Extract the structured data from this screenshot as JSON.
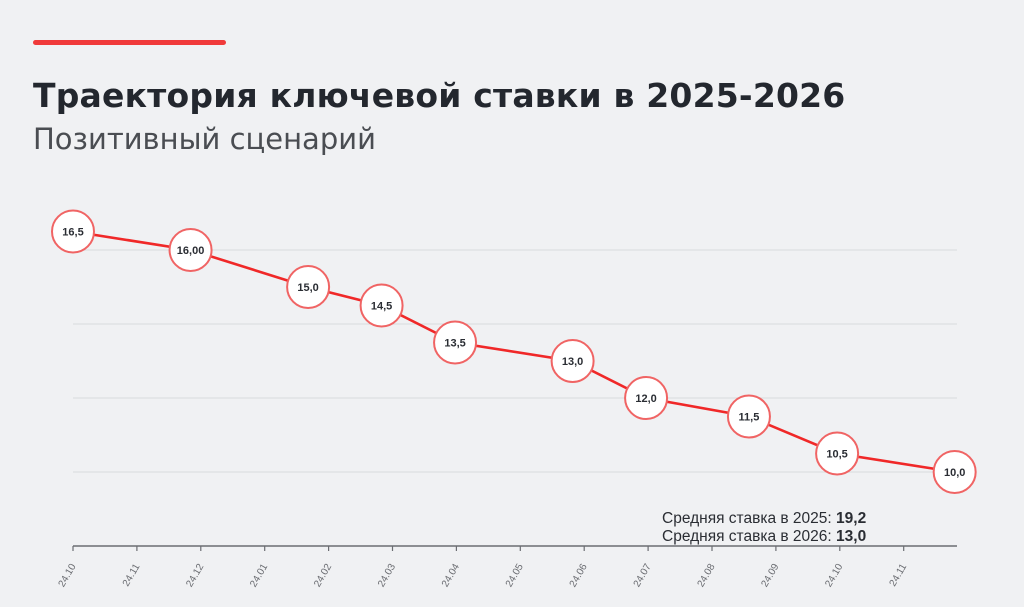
{
  "header": {
    "title": "Траектория ключевой ставки в 2025-2026",
    "subtitle": "Позитивный сценарий"
  },
  "colors": {
    "accent": "#f03a3a",
    "line": "#f02828",
    "marker_stroke": "#f06464",
    "marker_fill": "#ffffff",
    "text": "#23272e",
    "background": "#f0f1f3",
    "grid": "#d9dadd"
  },
  "notes": [
    {
      "label": "Средняя ставка в 2025:",
      "value": "19,2"
    },
    {
      "label": "Средняя ставка в 2026:",
      "value": "13,0"
    }
  ],
  "chart_data": {
    "type": "line",
    "title": "Траектория ключевой ставки в 2025-2026",
    "subtitle": "Позитивный сценарий",
    "x_ticks": [
      {
        "label": "24.10",
        "date": "2025-10-24"
      },
      {
        "label": "24.11",
        "date": "2025-11-24"
      },
      {
        "label": "24.12",
        "date": "2025-12-24"
      },
      {
        "label": "24.01",
        "date": "2026-01-24"
      },
      {
        "label": "24.02",
        "date": "2026-02-24"
      },
      {
        "label": "24.03",
        "date": "2026-03-24"
      },
      {
        "label": "24.04",
        "date": "2026-04-24"
      },
      {
        "label": "24.05",
        "date": "2026-05-24"
      },
      {
        "label": "24.06",
        "date": "2026-06-24"
      },
      {
        "label": "24.07",
        "date": "2026-07-24"
      },
      {
        "label": "24.08",
        "date": "2026-08-24"
      },
      {
        "label": "24.09",
        "date": "2026-09-24"
      },
      {
        "label": "24.10",
        "date": "2026-10-24"
      },
      {
        "label": "24.11",
        "date": "2026-11-24"
      }
    ],
    "points": [
      {
        "date": "2025-10-24",
        "value": 16.5,
        "label": "16,5"
      },
      {
        "date": "2025-12-19",
        "value": 16.0,
        "label": "16,00"
      },
      {
        "date": "2026-02-13",
        "value": 15.0,
        "label": "15,0"
      },
      {
        "date": "2026-03-20",
        "value": 14.5,
        "label": "14,5"
      },
      {
        "date": "2026-04-24",
        "value": 13.5,
        "label": "13,5"
      },
      {
        "date": "2026-06-19",
        "value": 13.0,
        "label": "13,0"
      },
      {
        "date": "2026-07-24",
        "value": 12.0,
        "label": "12,0"
      },
      {
        "date": "2026-09-11",
        "value": 11.5,
        "label": "11,5"
      },
      {
        "date": "2026-10-23",
        "value": 10.5,
        "label": "10,5"
      },
      {
        "date": "2026-12-18",
        "value": 10.0,
        "label": "10,0"
      }
    ],
    "ylim": [
      8,
      16.5
    ],
    "y_gridlines": [
      10,
      12,
      14,
      16
    ],
    "y_tick_labels_shown": false,
    "grid": true,
    "legend": "none"
  }
}
